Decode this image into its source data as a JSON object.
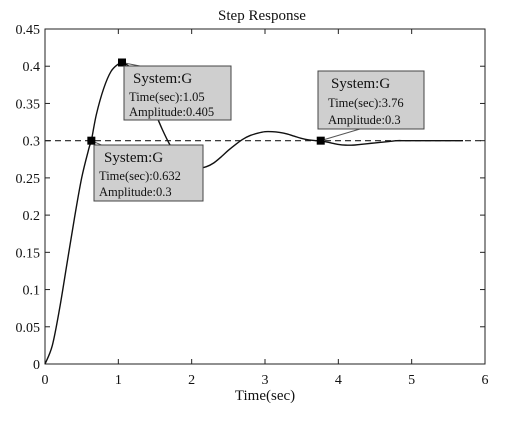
{
  "chart_data": {
    "type": "line",
    "title": "Step Response",
    "xlabel": "Time(sec)",
    "ylabel": "",
    "xlim": [
      0,
      6
    ],
    "ylim": [
      0,
      0.45
    ],
    "xticks": [
      "0",
      "1",
      "2",
      "3",
      "4",
      "5",
      "6"
    ],
    "yticks": [
      "0",
      "0.05",
      "0.1",
      "0.15",
      "0.2",
      "0.25",
      "0.3",
      "0.35",
      "0.4",
      "0.45"
    ],
    "grid": false,
    "reference_line": {
      "y": 0.3,
      "style": "dashed"
    },
    "series": [
      {
        "x": [
          0,
          0.1,
          0.2,
          0.3,
          0.4,
          0.5,
          0.6,
          0.632,
          0.7,
          0.8,
          0.9,
          1.0,
          1.05,
          1.1,
          1.2,
          1.3,
          1.4,
          1.5,
          1.6,
          1.7,
          1.8,
          1.9,
          2.0,
          2.1,
          2.2,
          2.3,
          2.4,
          2.5,
          2.6,
          2.7,
          2.8,
          2.9,
          3.0,
          3.1,
          3.2,
          3.3,
          3.4,
          3.5,
          3.6,
          3.7,
          3.76,
          3.8,
          3.9,
          4.0,
          4.1,
          4.2,
          4.3,
          4.4,
          4.5,
          4.6,
          4.7,
          4.8,
          4.9,
          5.0,
          5.2,
          5.4,
          5.6,
          5.7
        ],
        "y": [
          0,
          0.025,
          0.075,
          0.135,
          0.195,
          0.25,
          0.29,
          0.3,
          0.335,
          0.37,
          0.393,
          0.403,
          0.405,
          0.403,
          0.395,
          0.38,
          0.36,
          0.338,
          0.315,
          0.295,
          0.28,
          0.27,
          0.265,
          0.263,
          0.265,
          0.27,
          0.278,
          0.287,
          0.295,
          0.302,
          0.307,
          0.31,
          0.312,
          0.312,
          0.311,
          0.309,
          0.306,
          0.303,
          0.301,
          0.3,
          0.3,
          0.299,
          0.297,
          0.295,
          0.294,
          0.294,
          0.295,
          0.296,
          0.297,
          0.298,
          0.299,
          0.3,
          0.3,
          0.3,
          0.3,
          0.3,
          0.3,
          0.3
        ]
      }
    ],
    "markers": [
      {
        "x": 0.632,
        "y": 0.3
      },
      {
        "x": 1.05,
        "y": 0.405
      },
      {
        "x": 3.76,
        "y": 0.3
      }
    ],
    "datatips": [
      {
        "title": "System:G",
        "time": "Time(sec):1.05",
        "amplitude": "Amplitude:0.405"
      },
      {
        "title": "System:G",
        "time": "Time(sec):0.632",
        "amplitude": "Amplitude:0.3"
      },
      {
        "title": "System:G",
        "time": "Time(sec):3.76",
        "amplitude": "Amplitude:0.3"
      }
    ]
  }
}
